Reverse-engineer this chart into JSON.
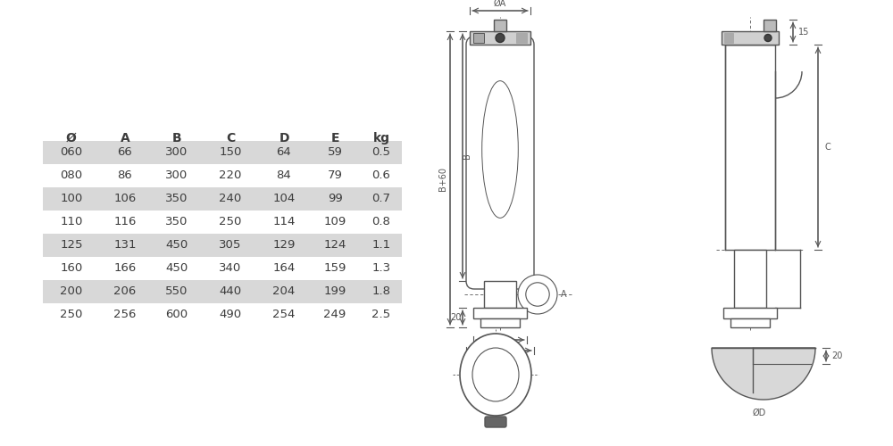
{
  "table_headers": [
    "Ø",
    "A",
    "B",
    "C",
    "D",
    "E",
    "kg"
  ],
  "table_rows": [
    [
      "060",
      "66",
      "300",
      "150",
      "64",
      "59",
      "0.5"
    ],
    [
      "080",
      "86",
      "300",
      "220",
      "84",
      "79",
      "0.6"
    ],
    [
      "100",
      "106",
      "350",
      "240",
      "104",
      "99",
      "0.7"
    ],
    [
      "110",
      "116",
      "350",
      "250",
      "114",
      "109",
      "0.8"
    ],
    [
      "125",
      "131",
      "450",
      "305",
      "129",
      "124",
      "1.1"
    ],
    [
      "160",
      "166",
      "450",
      "340",
      "164",
      "159",
      "1.3"
    ],
    [
      "200",
      "206",
      "550",
      "440",
      "204",
      "199",
      "1.8"
    ],
    [
      "250",
      "256",
      "600",
      "490",
      "254",
      "249",
      "2.5"
    ]
  ],
  "shaded_rows": [
    0,
    2,
    4,
    6
  ],
  "row_bg_shaded": "#d8d8d8",
  "row_bg_white": "#ffffff",
  "text_color": "#3c3c3c",
  "line_color": "#555555",
  "bg_color": "#ffffff"
}
